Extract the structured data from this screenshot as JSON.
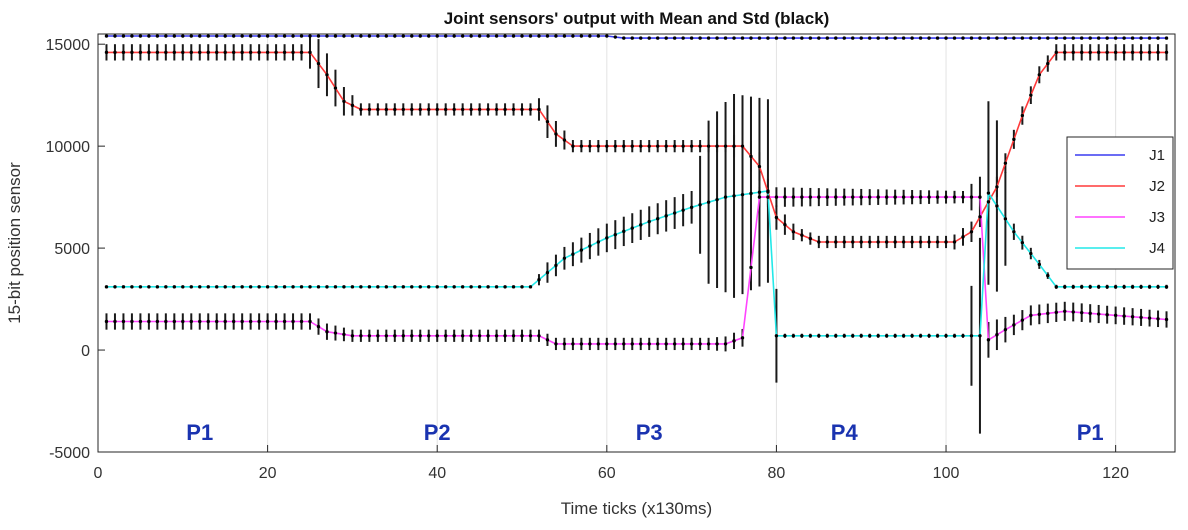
{
  "chart_data": {
    "type": "line",
    "title": "Joint sensors' output with Mean and Std (black)",
    "xlabel": "Time ticks (x130ms)",
    "ylabel": "15-bit position sensor",
    "xlim": [
      0,
      127
    ],
    "ylim": [
      -5000,
      15500
    ],
    "xticks": [
      0,
      20,
      40,
      60,
      80,
      100,
      120
    ],
    "yticks": [
      -5000,
      0,
      5000,
      10000,
      15000
    ],
    "grid": "vertical",
    "legend_position": "right",
    "phase_labels": [
      {
        "text": "P1",
        "x": 12
      },
      {
        "text": "P2",
        "x": 40
      },
      {
        "text": "P3",
        "x": 65
      },
      {
        "text": "P4",
        "x": 88
      },
      {
        "text": "P1",
        "x": 117
      }
    ],
    "phase_color": "#1a33b0",
    "series": [
      {
        "name": "J1",
        "color": "#3a3cf0",
        "points": [
          [
            1,
            15400
          ],
          [
            60,
            15400
          ],
          [
            62,
            15300
          ],
          [
            126,
            15300
          ]
        ],
        "std_points": [
          [
            1,
            0
          ],
          [
            126,
            0
          ]
        ]
      },
      {
        "name": "J2",
        "color": "#ff3a3a",
        "points": [
          [
            1,
            14600
          ],
          [
            25,
            14600
          ],
          [
            27,
            13500
          ],
          [
            29,
            12200
          ],
          [
            31,
            11800
          ],
          [
            52,
            11800
          ],
          [
            54,
            10600
          ],
          [
            56,
            10000
          ],
          [
            76,
            10000
          ],
          [
            78,
            9000
          ],
          [
            80,
            6500
          ],
          [
            82,
            5800
          ],
          [
            85,
            5300
          ],
          [
            101,
            5300
          ],
          [
            103,
            5800
          ],
          [
            106,
            8000
          ],
          [
            109,
            11500
          ],
          [
            111,
            13500
          ],
          [
            113,
            14600
          ],
          [
            126,
            14600
          ]
        ],
        "std_points": [
          [
            1,
            400
          ],
          [
            24,
            400
          ],
          [
            26,
            1200
          ],
          [
            28,
            900
          ],
          [
            31,
            300
          ],
          [
            51,
            300
          ],
          [
            53,
            800
          ],
          [
            56,
            300
          ],
          [
            74,
            300
          ],
          [
            76,
            800
          ],
          [
            80,
            600
          ],
          [
            83,
            300
          ],
          [
            100,
            300
          ],
          [
            103,
            500
          ],
          [
            106,
            500
          ],
          [
            112,
            400
          ],
          [
            126,
            400
          ]
        ]
      },
      {
        "name": "J3",
        "color": "#ff44ff",
        "points": [
          [
            1,
            1400
          ],
          [
            25,
            1400
          ],
          [
            27,
            900
          ],
          [
            30,
            700
          ],
          [
            52,
            700
          ],
          [
            54,
            300
          ],
          [
            74,
            300
          ],
          [
            76,
            600
          ],
          [
            78,
            7500
          ],
          [
            104,
            7500
          ],
          [
            105,
            500
          ],
          [
            107,
            1000
          ],
          [
            110,
            1700
          ],
          [
            114,
            1900
          ],
          [
            126,
            1500
          ]
        ],
        "std_points": [
          [
            1,
            400
          ],
          [
            24,
            400
          ],
          [
            27,
            400
          ],
          [
            30,
            300
          ],
          [
            51,
            300
          ],
          [
            54,
            300
          ],
          [
            72,
            300
          ],
          [
            78,
            500
          ],
          [
            102,
            300
          ],
          [
            104,
            1000
          ],
          [
            108,
            500
          ],
          [
            126,
            400
          ]
        ]
      },
      {
        "name": "J4",
        "color": "#22e8e8",
        "points": [
          [
            1,
            3100
          ],
          [
            51,
            3100
          ],
          [
            55,
            4500
          ],
          [
            60,
            5500
          ],
          [
            65,
            6300
          ],
          [
            70,
            7000
          ],
          [
            74,
            7500
          ],
          [
            79,
            7800
          ],
          [
            80,
            700
          ],
          [
            104,
            700
          ],
          [
            105,
            7700
          ],
          [
            108,
            5800
          ],
          [
            111,
            4200
          ],
          [
            113,
            3100
          ],
          [
            126,
            3100
          ]
        ],
        "std_points": [
          [
            1,
            50
          ],
          [
            51,
            50
          ],
          [
            53,
            500
          ],
          [
            60,
            700
          ],
          [
            70,
            800
          ],
          [
            72,
            4000
          ],
          [
            75,
            5000
          ],
          [
            79,
            4500
          ],
          [
            81,
            100
          ],
          [
            102,
            100
          ],
          [
            104,
            4800
          ],
          [
            106,
            4200
          ],
          [
            108,
            400
          ],
          [
            113,
            100
          ],
          [
            126,
            100
          ]
        ]
      }
    ]
  }
}
